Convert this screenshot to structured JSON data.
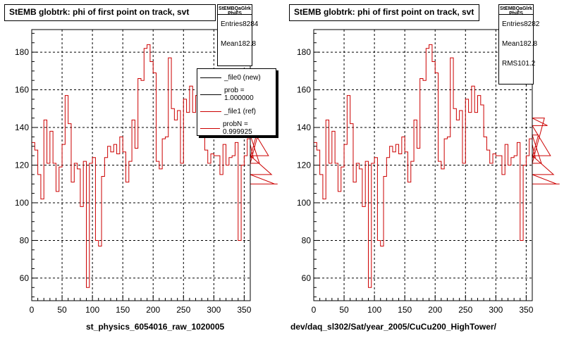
{
  "chart_data": [
    {
      "type": "histogram",
      "title": "StEMB globtrk: phi of first point on track, svt",
      "xlabel": "st_physics_6054016_raw_1020005",
      "ylabel": "",
      "xlim": [
        0,
        360
      ],
      "ylim": [
        48,
        192
      ],
      "xticks": [
        0,
        50,
        100,
        150,
        200,
        250,
        300,
        350
      ],
      "yticks": [
        60,
        80,
        100,
        120,
        140,
        160,
        180
      ],
      "grid": true,
      "stats": {
        "header": "StEMBQaGlrk PhiFS",
        "rows": [
          {
            "label": "Entries",
            "value": "8284"
          },
          {
            "label": "Mean",
            "value": "182.8"
          }
        ]
      },
      "legend": [
        {
          "label": "_file0 (new)",
          "color": "#000000"
        },
        {
          "label": "prob = 1.000000",
          "color": "#000000"
        },
        {
          "label": "_file1 (ref)",
          "color": "#cc0000"
        },
        {
          "label": "probN = 0.999925",
          "color": "#cc0000"
        }
      ],
      "series": [
        {
          "name": "_file1 (ref)",
          "color": "#cc0000",
          "bin_width": 5,
          "values": [
            132,
            128,
            115,
            102,
            144,
            121,
            138,
            121,
            106,
            119,
            131,
            157,
            142,
            111,
            121,
            118,
            98,
            122,
            55,
            121,
            124,
            80,
            77,
            114,
            124,
            130,
            127,
            131,
            126,
            135,
            127,
            111,
            122,
            144,
            129,
            166,
            165,
            182,
            184,
            175,
            169,
            122,
            118,
            134,
            135,
            177,
            150,
            144,
            149,
            121,
            155,
            148,
            162,
            148,
            157,
            152,
            135,
            128,
            121,
            126,
            125,
            125,
            115,
            131,
            120,
            124,
            125,
            132,
            80,
            120,
            125,
            134,
            131,
            124,
            136,
            121,
            145,
            141,
            125,
            115,
            110,
            110
          ]
        }
      ]
    },
    {
      "type": "histogram",
      "title": "StEMB globtrk: phi of first point on track, svt",
      "xlabel": "dev/daq_sl302/Sat/year_2005/CuCu200_HighTower/",
      "ylabel": "",
      "xlim": [
        0,
        360
      ],
      "ylim": [
        48,
        192
      ],
      "xticks": [
        0,
        50,
        100,
        150,
        200,
        250,
        300,
        350
      ],
      "yticks": [
        60,
        80,
        100,
        120,
        140,
        160,
        180
      ],
      "grid": true,
      "stats": {
        "header": "StEMBQaGlrk PhiFS",
        "rows": [
          {
            "label": "Entries",
            "value": "8282"
          },
          {
            "label": "Mean",
            "value": "182.8"
          },
          {
            "label": "RMS",
            "value": "101.2"
          }
        ]
      },
      "series": [
        {
          "name": "",
          "color": "#cc0000",
          "bin_width": 5,
          "values": [
            132,
            128,
            115,
            102,
            144,
            121,
            138,
            121,
            106,
            119,
            131,
            157,
            142,
            111,
            121,
            118,
            98,
            122,
            55,
            121,
            124,
            80,
            77,
            114,
            124,
            130,
            127,
            131,
            126,
            135,
            127,
            111,
            122,
            144,
            129,
            166,
            165,
            182,
            184,
            175,
            169,
            122,
            118,
            134,
            135,
            177,
            150,
            144,
            149,
            121,
            155,
            148,
            162,
            148,
            157,
            152,
            135,
            128,
            121,
            126,
            125,
            125,
            115,
            131,
            120,
            124,
            125,
            132,
            80,
            120,
            125,
            134,
            131,
            124,
            136,
            121,
            145,
            141,
            125,
            115,
            110,
            110
          ]
        }
      ]
    }
  ]
}
